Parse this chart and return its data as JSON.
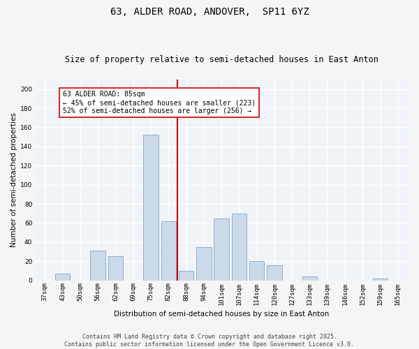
{
  "title": "63, ALDER ROAD, ANDOVER,  SP11 6YZ",
  "subtitle": "Size of property relative to semi-detached houses in East Anton",
  "xlabel": "Distribution of semi-detached houses by size in East Anton",
  "ylabel": "Number of semi-detached properties",
  "categories": [
    "37sqm",
    "43sqm",
    "50sqm",
    "56sqm",
    "62sqm",
    "69sqm",
    "75sqm",
    "82sqm",
    "88sqm",
    "94sqm",
    "101sqm",
    "107sqm",
    "114sqm",
    "120sqm",
    "127sqm",
    "133sqm",
    "139sqm",
    "146sqm",
    "152sqm",
    "159sqm",
    "165sqm"
  ],
  "values": [
    0,
    7,
    0,
    31,
    25,
    0,
    152,
    62,
    10,
    35,
    65,
    70,
    20,
    16,
    0,
    4,
    0,
    0,
    0,
    2,
    0
  ],
  "bar_color": "#ccd9e8",
  "bar_edge_color": "#7aaac8",
  "vline_x": 7.5,
  "vline_color": "#cc0000",
  "annotation_title": "63 ALDER ROAD: 85sqm",
  "annotation_line1": "← 45% of semi-detached houses are smaller (223)",
  "annotation_line2": "52% of semi-detached houses are larger (256) →",
  "annotation_box_color": "#ffffff",
  "annotation_box_edge": "#cc0000",
  "ylim": [
    0,
    210
  ],
  "yticks": [
    0,
    20,
    40,
    60,
    80,
    100,
    120,
    140,
    160,
    180,
    200
  ],
  "footnote": "Contains HM Land Registry data © Crown copyright and database right 2025.\nContains public sector information licensed under the Open Government Licence v3.0.",
  "bg_color": "#f5f5f5",
  "plot_bg_color": "#f0f4f9",
  "grid_color": "#ffffff",
  "title_fontsize": 10,
  "subtitle_fontsize": 8.5,
  "axis_label_fontsize": 7.5,
  "tick_fontsize": 6.5,
  "annotation_fontsize": 7,
  "footnote_fontsize": 6
}
